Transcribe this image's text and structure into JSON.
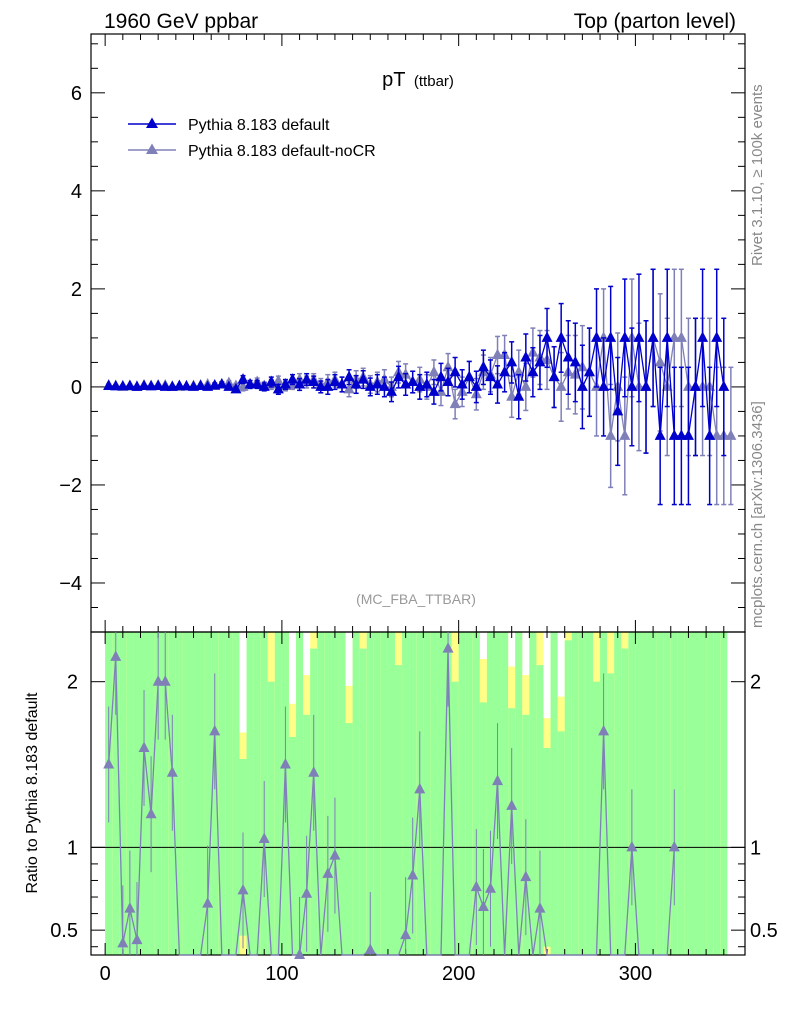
{
  "header": {
    "left": "1960 GeV ppbar",
    "right": "Top (parton level)"
  },
  "side": {
    "rivet": "Rivet 3.1.10, ≥ 100k events",
    "mcplots": "mcplots.cern.ch [arXiv:1306.3436]"
  },
  "chart_data": {
    "type": "line",
    "title_main": "pT",
    "title_sub": "(ttbar)",
    "analysis": "(MC_FBA_TTBAR)",
    "ratio_ylabel": "Ratio to Pythia 8.183 default",
    "xlim": [
      -8,
      362
    ],
    "ylim": [
      -5,
      7.2
    ],
    "ratio_ylim": [
      0.35,
      2.3
    ],
    "x_ticks": [
      0,
      100,
      200,
      300
    ],
    "y_ticks": [
      -4,
      -2,
      0,
      2,
      4,
      6
    ],
    "ratio_ticks": [
      0.5,
      1,
      2
    ],
    "colors": {
      "default": "#0000cc",
      "nocr": "#8080b8",
      "band_green": "#99ff99",
      "band_yellow": "#ffff88"
    },
    "series": [
      {
        "name": "Pythia 8.183 default",
        "x": [
          2,
          6,
          10,
          14,
          18,
          22,
          26,
          30,
          34,
          38,
          42,
          46,
          50,
          54,
          58,
          62,
          66,
          70,
          74,
          78,
          82,
          86,
          90,
          94,
          98,
          102,
          106,
          110,
          114,
          118,
          122,
          126,
          130,
          134,
          138,
          142,
          146,
          150,
          154,
          158,
          162,
          166,
          170,
          174,
          178,
          182,
          186,
          190,
          194,
          198,
          202,
          206,
          210,
          214,
          218,
          222,
          226,
          230,
          234,
          238,
          242,
          246,
          250,
          254,
          258,
          262,
          266,
          270,
          274,
          278,
          282,
          286,
          290,
          294,
          298,
          302,
          306,
          310,
          314,
          318,
          322,
          326,
          330,
          334,
          338,
          342,
          346,
          350
        ],
        "y": [
          0.02,
          0.01,
          0.01,
          0.02,
          0.0,
          0.02,
          0.01,
          0.02,
          0.0,
          0.0,
          0.02,
          0.01,
          0.0,
          0.02,
          0.0,
          0.03,
          0.05,
          0.0,
          -0.05,
          0.15,
          0.05,
          0.05,
          0.0,
          0.1,
          -0.05,
          0.05,
          0.15,
          0.05,
          0.15,
          0.1,
          0.0,
          0.0,
          0.1,
          0.05,
          0.2,
          0.05,
          0.15,
          0.0,
          0.05,
          0.0,
          -0.1,
          0.2,
          0.05,
          0.1,
          0.0,
          0.05,
          -0.1,
          0.2,
          0.1,
          0.3,
          0.05,
          0.2,
          0.0,
          0.4,
          0.2,
          0.05,
          0.3,
          0.5,
          -0.2,
          0.6,
          0.3,
          0.5,
          1.0,
          0.2,
          1.0,
          0.6,
          0.5,
          0.0,
          0.3,
          1.0,
          0.0,
          1.0,
          -0.5,
          1.0,
          0.0,
          1.0,
          0.0,
          1.0,
          -1.0,
          1.0,
          -1.0,
          -1.0,
          -1.0,
          0.0,
          1.0,
          -1.0,
          1.0,
          0.0
        ],
        "err": [
          0.03,
          0.03,
          0.03,
          0.03,
          0.03,
          0.03,
          0.03,
          0.03,
          0.03,
          0.03,
          0.03,
          0.03,
          0.03,
          0.03,
          0.03,
          0.05,
          0.05,
          0.05,
          0.05,
          0.08,
          0.08,
          0.08,
          0.08,
          0.1,
          0.1,
          0.1,
          0.1,
          0.12,
          0.12,
          0.12,
          0.12,
          0.15,
          0.15,
          0.15,
          0.15,
          0.18,
          0.18,
          0.18,
          0.2,
          0.2,
          0.2,
          0.22,
          0.22,
          0.22,
          0.25,
          0.25,
          0.25,
          0.28,
          0.28,
          0.3,
          0.3,
          0.32,
          0.32,
          0.35,
          0.35,
          0.38,
          0.4,
          0.42,
          0.45,
          0.48,
          0.5,
          0.55,
          0.6,
          0.62,
          0.7,
          0.75,
          0.8,
          0.85,
          0.9,
          1.0,
          1.0,
          1.05,
          1.1,
          1.2,
          1.2,
          1.3,
          1.35,
          1.4,
          1.4,
          1.4,
          1.4,
          1.4,
          1.4,
          1.4,
          1.4,
          1.4,
          1.4,
          1.4
        ]
      },
      {
        "name": "Pythia 8.183 default-noCR",
        "x": [
          2,
          6,
          10,
          14,
          18,
          22,
          26,
          30,
          34,
          38,
          42,
          46,
          50,
          54,
          58,
          62,
          66,
          70,
          74,
          78,
          82,
          86,
          90,
          94,
          98,
          102,
          106,
          110,
          114,
          118,
          122,
          126,
          130,
          134,
          138,
          142,
          146,
          150,
          154,
          158,
          162,
          166,
          170,
          174,
          178,
          182,
          186,
          190,
          194,
          198,
          202,
          206,
          210,
          214,
          218,
          222,
          226,
          230,
          234,
          238,
          242,
          246,
          250,
          254,
          258,
          262,
          266,
          270,
          274,
          278,
          282,
          286,
          290,
          294,
          298,
          302,
          306,
          310,
          314,
          318,
          322,
          326,
          330,
          334,
          338,
          342,
          346,
          350,
          354
        ],
        "y": [
          0.03,
          0.02,
          0.0,
          0.01,
          0.0,
          0.03,
          0.02,
          0.03,
          0.03,
          0.0,
          0.0,
          0.01,
          0.02,
          0.03,
          0.05,
          0.02,
          0.05,
          0.08,
          0.02,
          0.0,
          0.05,
          0.1,
          0.02,
          0.05,
          0.12,
          0.02,
          0.05,
          0.15,
          0.1,
          0.15,
          0.05,
          0.1,
          0.15,
          0.05,
          -0.05,
          0.15,
          0.2,
          0.05,
          0.1,
          0.15,
          0.0,
          0.3,
          0.25,
          0.1,
          0.15,
          0.0,
          0.3,
          -0.1,
          0.4,
          -0.35,
          -0.1,
          0.2,
          -0.15,
          0.3,
          0.25,
          0.65,
          0.65,
          -0.2,
          0.3,
          0.0,
          0.7,
          0.6,
          0.55,
          0.2,
          0.0,
          0.3,
          0.25,
          0.4,
          0.3,
          0.0,
          1.0,
          -1.0,
          0.0,
          -1.0,
          1.0,
          0.0,
          0.0,
          1.0,
          0.5,
          0.0,
          1.0,
          1.0,
          0.0,
          0.0,
          0.0,
          0.0,
          -1.0,
          -1.0,
          -1.0
        ],
        "err": [
          0.03,
          0.03,
          0.03,
          0.03,
          0.03,
          0.03,
          0.03,
          0.03,
          0.03,
          0.03,
          0.03,
          0.03,
          0.03,
          0.03,
          0.03,
          0.05,
          0.05,
          0.05,
          0.05,
          0.08,
          0.08,
          0.08,
          0.08,
          0.1,
          0.1,
          0.1,
          0.1,
          0.12,
          0.12,
          0.12,
          0.12,
          0.15,
          0.15,
          0.15,
          0.15,
          0.18,
          0.18,
          0.18,
          0.2,
          0.2,
          0.2,
          0.22,
          0.22,
          0.22,
          0.25,
          0.25,
          0.25,
          0.28,
          0.28,
          0.3,
          0.3,
          0.32,
          0.32,
          0.35,
          0.35,
          0.38,
          0.4,
          0.42,
          0.45,
          0.48,
          0.5,
          0.55,
          0.6,
          0.62,
          0.7,
          0.75,
          0.8,
          0.85,
          0.9,
          1.0,
          1.0,
          1.05,
          1.1,
          1.2,
          1.2,
          1.3,
          1.35,
          1.4,
          1.4,
          1.4,
          1.4,
          1.4,
          1.4,
          1.4,
          1.4,
          1.4,
          1.4,
          1.4,
          1.4
        ]
      }
    ],
    "ratio": {
      "name": "Pythia 8.183 default-noCR / Pythia 8.183 default",
      "x": [
        2,
        6,
        10,
        14,
        18,
        22,
        26,
        30,
        34,
        38,
        42,
        46,
        50,
        54,
        58,
        62,
        66,
        70,
        74,
        78,
        82,
        86,
        90,
        94,
        98,
        102,
        106,
        110,
        114,
        118,
        122,
        126,
        130,
        134,
        138,
        142,
        146,
        150,
        154,
        158,
        162,
        166,
        170,
        174,
        178,
        182,
        186,
        190,
        194,
        198,
        202,
        206,
        210,
        214,
        218,
        222,
        226,
        230,
        234,
        238,
        242,
        246,
        250,
        254,
        258,
        262,
        266,
        270,
        274,
        278,
        282,
        286,
        290,
        294,
        298,
        302,
        306,
        310,
        314,
        318,
        322
      ],
      "y": [
        1.5,
        2.15,
        0.42,
        0.63,
        0.44,
        1.6,
        1.2,
        2.0,
        2.0,
        1.45,
        0.3,
        0.3,
        0.3,
        0.3,
        0.66,
        1.7,
        0.3,
        0.3,
        0.3,
        0.74,
        0.3,
        0.3,
        1.05,
        0.3,
        0.3,
        1.5,
        0.3,
        0.35,
        0.72,
        1.45,
        0.3,
        0.84,
        0.95,
        0.3,
        0.3,
        0.3,
        0.3,
        0.38,
        0.3,
        0.3,
        0.3,
        0.3,
        0.47,
        0.83,
        1.35,
        0.3,
        0.3,
        0.3,
        2.2,
        0.3,
        0.3,
        0.3,
        0.76,
        0.64,
        0.75,
        1.4,
        0.3,
        1.25,
        0.3,
        0.82,
        0.3,
        0.63,
        0.3,
        0.3,
        0.3,
        0.3,
        0.3,
        0.3,
        0.3,
        0.3,
        1.7,
        0.3,
        0.3,
        0.3,
        1.0,
        0.3,
        0.3,
        0.3,
        0.3,
        0.3,
        1.0
      ]
    }
  },
  "legend": {
    "items": [
      {
        "label": "Pythia 8.183 default"
      },
      {
        "label": "Pythia 8.183 default-noCR"
      }
    ]
  }
}
